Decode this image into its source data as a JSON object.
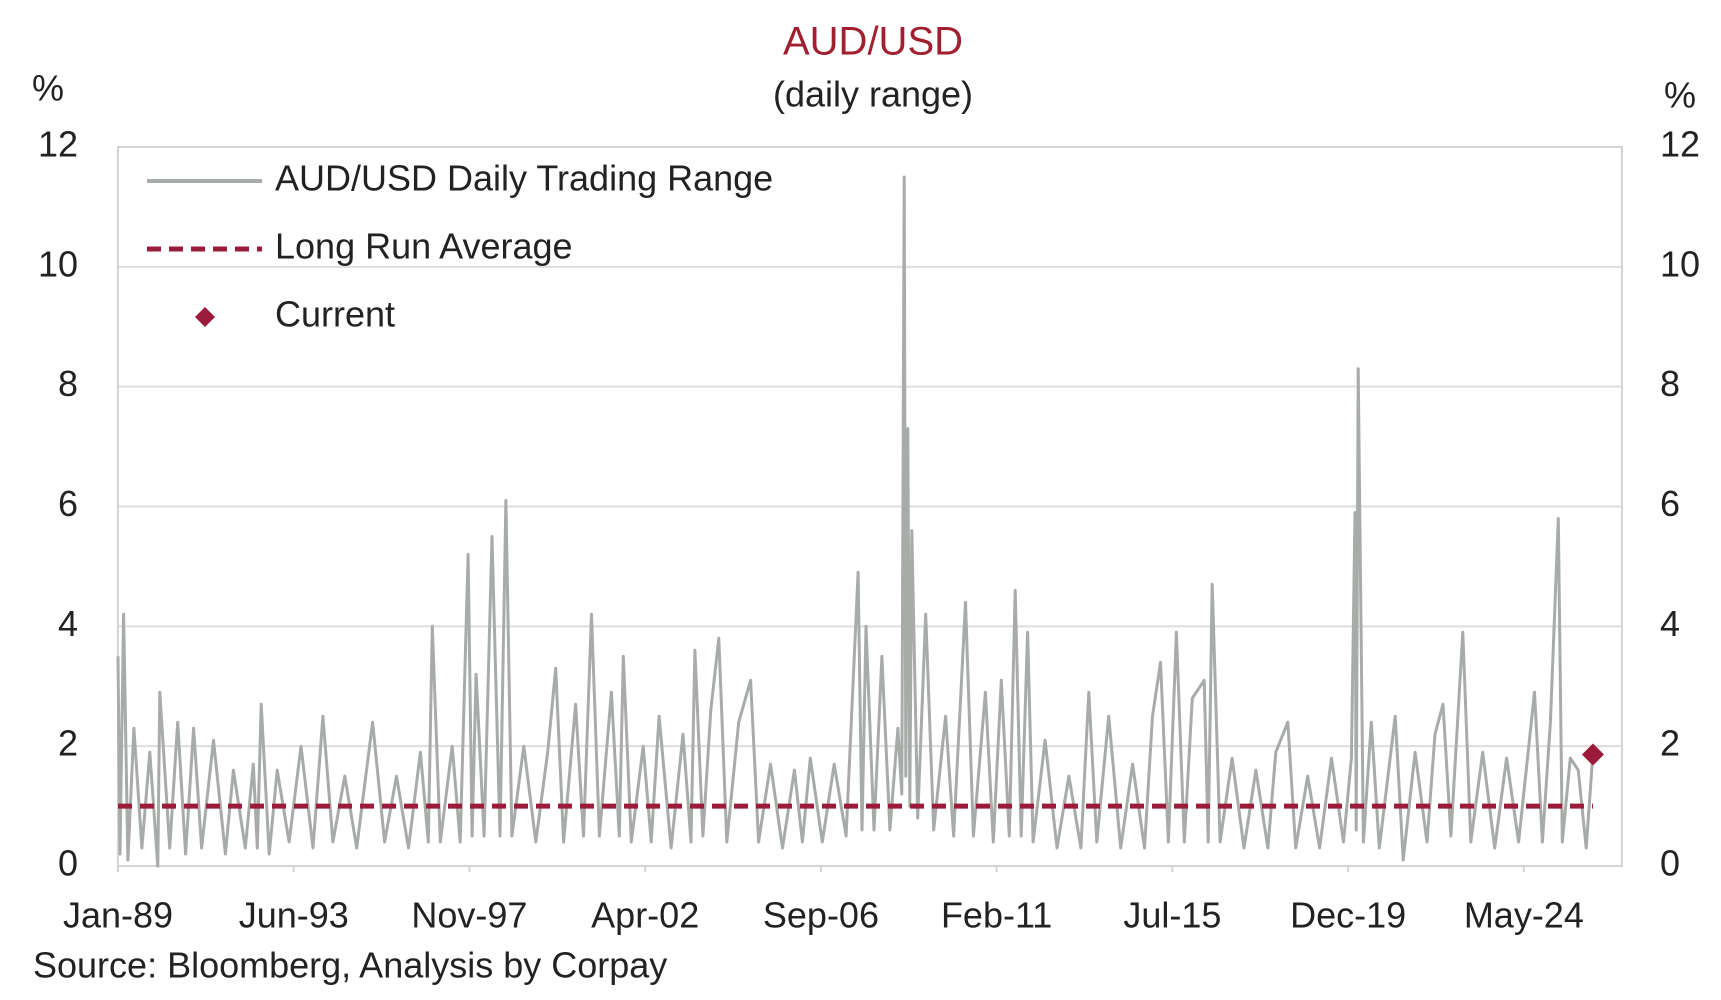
{
  "chart_data": {
    "type": "line",
    "title": "AUD/USD",
    "subtitle": "(daily range)",
    "y_label": "%",
    "y2_label": "%",
    "source": "Source: Bloomberg, Analysis by Corpay",
    "xlim": [
      1989,
      2026.8
    ],
    "xticks": [
      {
        "value": 1989.0,
        "label": "Jan-89"
      },
      {
        "value": 1993.417,
        "label": "Jun-93"
      },
      {
        "value": 1997.833,
        "label": "Nov-97"
      },
      {
        "value": 2002.25,
        "label": "Apr-02"
      },
      {
        "value": 2006.667,
        "label": "Sep-06"
      },
      {
        "value": 2011.083,
        "label": "Feb-11"
      },
      {
        "value": 2015.5,
        "label": "Jul-15"
      },
      {
        "value": 2019.917,
        "label": "Dec-19"
      },
      {
        "value": 2024.333,
        "label": "May-24"
      }
    ],
    "ylim": [
      0,
      12
    ],
    "yticks": [
      0,
      2,
      4,
      6,
      8,
      10,
      12
    ],
    "y2lim": [
      0,
      12
    ],
    "y2ticks": [
      0,
      2,
      4,
      6,
      8,
      10,
      12
    ],
    "grid": true,
    "legend": "upper left",
    "series": [
      {
        "name": "AUD/USD Daily Trading Range",
        "kind": "line",
        "color": "#a8aca9",
        "x": [
          1989.0,
          1989.05,
          1989.14,
          1989.25,
          1989.4,
          1989.6,
          1989.8,
          1990.0,
          1990.05,
          1990.3,
          1990.5,
          1990.7,
          1990.9,
          1991.1,
          1991.4,
          1991.7,
          1991.9,
          1992.2,
          1992.4,
          1992.5,
          1992.6,
          1992.8,
          1993.0,
          1993.3,
          1993.6,
          1993.9,
          1994.15,
          1994.4,
          1994.7,
          1995.0,
          1995.4,
          1995.7,
          1996.0,
          1996.3,
          1996.6,
          1996.8,
          1996.9,
          1997.1,
          1997.4,
          1997.6,
          1997.8,
          1997.9,
          1998.0,
          1998.2,
          1998.4,
          1998.6,
          1998.75,
          1998.9,
          1999.2,
          1999.5,
          1999.8,
          2000.0,
          2000.2,
          2000.5,
          2000.7,
          2000.9,
          2001.1,
          2001.4,
          2001.6,
          2001.7,
          2001.9,
          2002.2,
          2002.4,
          2002.6,
          2002.9,
          2003.2,
          2003.4,
          2003.5,
          2003.7,
          2003.9,
          2004.1,
          2004.3,
          2004.6,
          2004.9,
          2005.1,
          2005.4,
          2005.7,
          2006.0,
          2006.2,
          2006.4,
          2006.7,
          2007.0,
          2007.3,
          2007.6,
          2007.7,
          2007.8,
          2008.0,
          2008.2,
          2008.4,
          2008.6,
          2008.7,
          2008.76,
          2008.8,
          2008.85,
          2008.9,
          2008.95,
          2009.1,
          2009.3,
          2009.5,
          2009.8,
          2010.0,
          2010.3,
          2010.5,
          2010.8,
          2011.0,
          2011.2,
          2011.4,
          2011.55,
          2011.7,
          2011.86,
          2012.0,
          2012.3,
          2012.6,
          2012.9,
          2013.2,
          2013.4,
          2013.6,
          2013.9,
          2014.2,
          2014.5,
          2014.8,
          2015.0,
          2015.2,
          2015.4,
          2015.6,
          2015.8,
          2016.0,
          2016.3,
          2016.4,
          2016.5,
          2016.7,
          2017.0,
          2017.3,
          2017.6,
          2017.9,
          2018.1,
          2018.4,
          2018.6,
          2018.9,
          2019.2,
          2019.5,
          2019.8,
          2020.0,
          2020.09,
          2020.12,
          2020.17,
          2020.3,
          2020.5,
          2020.7,
          2021.1,
          2021.3,
          2021.6,
          2021.9,
          2022.1,
          2022.3,
          2022.5,
          2022.8,
          2023.0,
          2023.3,
          2023.6,
          2023.9,
          2024.2,
          2024.6,
          2024.8,
          2025.0,
          2025.2,
          2025.3,
          2025.5,
          2025.7,
          2025.9,
          2026.07
        ],
        "values": [
          3.5,
          0.2,
          4.2,
          0.1,
          2.3,
          0.3,
          1.9,
          0.0,
          2.9,
          0.3,
          2.4,
          0.2,
          2.3,
          0.3,
          2.1,
          0.2,
          1.6,
          0.3,
          1.7,
          0.3,
          2.7,
          0.2,
          1.6,
          0.4,
          2.0,
          0.3,
          2.5,
          0.4,
          1.5,
          0.3,
          2.4,
          0.4,
          1.5,
          0.3,
          1.9,
          0.4,
          4.0,
          0.4,
          2.0,
          0.4,
          5.2,
          0.5,
          3.2,
          0.5,
          5.5,
          0.5,
          6.1,
          0.5,
          2.0,
          0.4,
          1.9,
          3.3,
          0.4,
          2.7,
          0.5,
          4.2,
          0.5,
          2.9,
          0.5,
          3.5,
          0.4,
          2.0,
          0.4,
          2.5,
          0.3,
          2.2,
          0.4,
          3.6,
          0.5,
          2.6,
          3.8,
          0.4,
          2.4,
          3.1,
          0.4,
          1.7,
          0.3,
          1.6,
          0.4,
          1.8,
          0.4,
          1.7,
          0.5,
          4.9,
          0.6,
          4.0,
          0.6,
          3.5,
          0.6,
          2.3,
          1.2,
          11.5,
          1.5,
          7.3,
          1.0,
          5.6,
          0.8,
          4.2,
          0.6,
          2.5,
          0.5,
          4.4,
          0.5,
          2.9,
          0.4,
          3.1,
          0.5,
          4.6,
          0.5,
          3.9,
          0.4,
          2.1,
          0.3,
          1.5,
          0.3,
          2.9,
          0.4,
          2.5,
          0.3,
          1.7,
          0.3,
          2.5,
          3.4,
          0.4,
          3.9,
          0.4,
          2.8,
          3.1,
          0.4,
          4.7,
          0.4,
          1.8,
          0.3,
          1.6,
          0.3,
          1.9,
          2.4,
          0.3,
          1.5,
          0.3,
          1.8,
          0.4,
          1.8,
          5.9,
          0.6,
          8.3,
          0.4,
          2.4,
          0.3,
          2.5,
          0.1,
          1.9,
          0.4,
          2.2,
          2.7,
          0.5,
          3.9,
          0.4,
          1.9,
          0.3,
          1.8,
          0.4,
          2.9,
          0.4,
          2.4,
          5.8,
          0.4,
          1.8,
          1.6,
          0.3,
          1.9
        ]
      },
      {
        "name": "Long Run Average",
        "kind": "dashed",
        "color": "#9b1b3a",
        "x": [
          1989.0,
          2026.07
        ],
        "values": [
          1.0,
          1.0
        ]
      },
      {
        "name": "Current",
        "kind": "marker",
        "color": "#9b1b3a",
        "x": [
          2026.07
        ],
        "values": [
          1.86
        ]
      }
    ]
  }
}
